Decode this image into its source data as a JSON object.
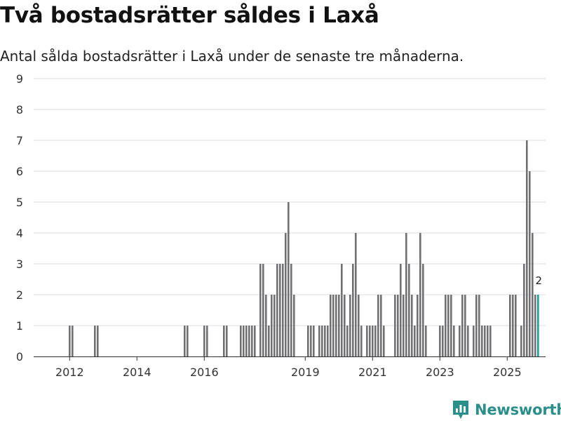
{
  "header": {
    "title": "Två bostadsrätter såldes i Laxå",
    "subtitle": "Antal sålda bostadsrätter i Laxå under de senaste tre månaderna."
  },
  "branding": {
    "logo_text": "Newsworthy",
    "logo_icon": "bar-chart-pin-icon"
  },
  "colors": {
    "bar": "#707075",
    "highlight": "#1aa19a",
    "grid": "#dddddd",
    "axis": "#333333",
    "brand": "#2a8f88"
  },
  "chart_data": {
    "type": "bar",
    "title": "Två bostadsrätter såldes i Laxå",
    "subtitle": "Antal sålda bostadsrätter i Laxå under de senaste tre månaderna.",
    "xlabel": "",
    "ylabel": "",
    "ylim": [
      0,
      9
    ],
    "yticks": [
      0,
      1,
      2,
      3,
      4,
      5,
      6,
      7,
      8,
      9
    ],
    "grid": true,
    "x_start_year": 2011,
    "x_start_month": 1,
    "x_unit": "month (rolling 3-month sum)",
    "xticks": [
      {
        "label": "2012",
        "index": 12
      },
      {
        "label": "2014",
        "index": 36
      },
      {
        "label": "2016",
        "index": 60
      },
      {
        "label": "2019",
        "index": 96
      },
      {
        "label": "2021",
        "index": 120
      },
      {
        "label": "2023",
        "index": 144
      },
      {
        "label": "2025",
        "index": 168
      }
    ],
    "values": [
      0,
      0,
      0,
      0,
      0,
      0,
      0,
      0,
      0,
      0,
      0,
      0,
      1,
      1,
      0,
      0,
      0,
      0,
      0,
      0,
      0,
      1,
      1,
      0,
      0,
      0,
      0,
      0,
      0,
      0,
      0,
      0,
      0,
      0,
      0,
      0,
      0,
      0,
      0,
      0,
      0,
      0,
      0,
      0,
      0,
      0,
      0,
      0,
      0,
      0,
      0,
      0,
      0,
      1,
      1,
      0,
      0,
      0,
      0,
      0,
      1,
      1,
      0,
      0,
      0,
      0,
      0,
      1,
      1,
      0,
      0,
      0,
      0,
      1,
      1,
      1,
      1,
      1,
      1,
      0,
      3,
      3,
      2,
      1,
      2,
      2,
      3,
      3,
      3,
      4,
      5,
      3,
      2,
      0,
      0,
      0,
      0,
      1,
      1,
      1,
      0,
      1,
      1,
      1,
      1,
      2,
      2,
      2,
      2,
      3,
      2,
      1,
      2,
      3,
      4,
      2,
      1,
      0,
      1,
      1,
      1,
      1,
      2,
      2,
      1,
      0,
      0,
      0,
      2,
      2,
      3,
      2,
      4,
      3,
      2,
      1,
      2,
      4,
      3,
      1,
      0,
      0,
      0,
      0,
      1,
      1,
      2,
      2,
      2,
      1,
      0,
      1,
      2,
      2,
      1,
      0,
      1,
      2,
      2,
      1,
      1,
      1,
      1,
      0,
      0,
      0,
      0,
      0,
      0,
      2,
      2,
      2,
      0,
      1,
      3,
      7,
      6,
      4,
      2,
      2
    ],
    "highlight_index": 179,
    "annotations": [
      {
        "index": 179,
        "text": "2"
      }
    ]
  }
}
